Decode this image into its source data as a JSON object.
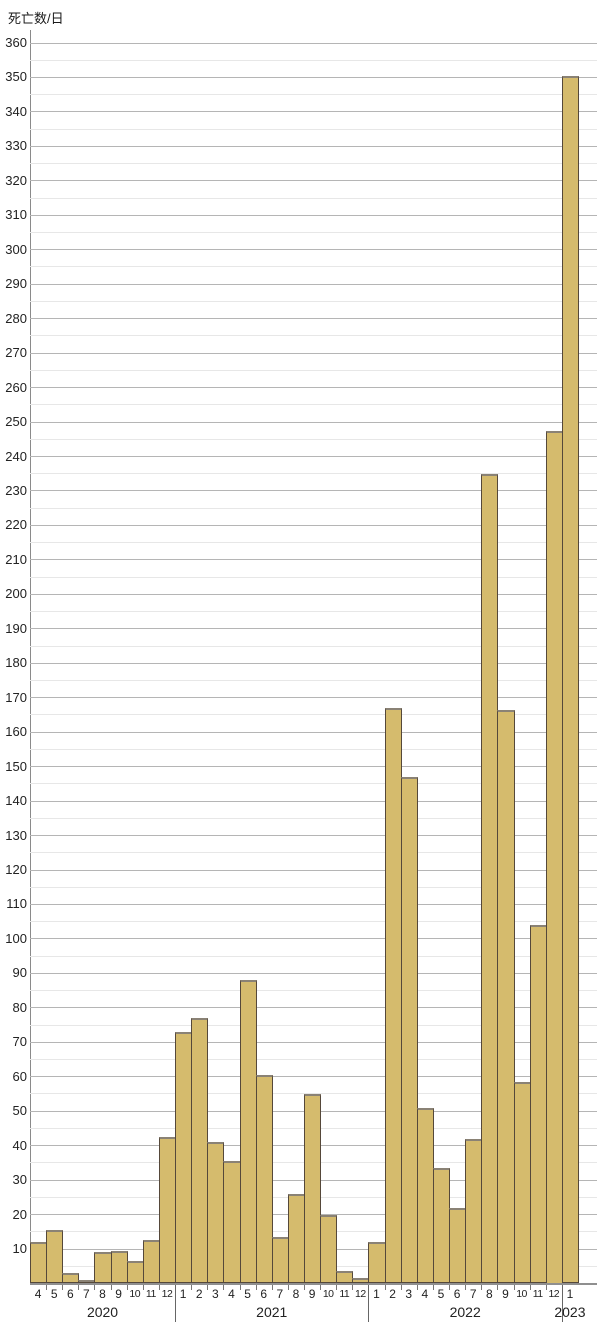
{
  "chart_data": {
    "type": "bar",
    "title": "死亡数/日",
    "ylabel": "死亡数/日",
    "xlabel": "",
    "ylim": [
      0,
      360
    ],
    "ytick_step": 10,
    "minor_grid_step": 5,
    "grid": "on",
    "legend": "none",
    "bar_fill_color": "#d5bb6d",
    "bar_border_color": "#55483a",
    "bar_top_edge_color": "#8a8275",
    "y_tick_labels": [
      "10",
      "20",
      "30",
      "40",
      "50",
      "60",
      "70",
      "80",
      "90",
      "100",
      "110",
      "120",
      "130",
      "140",
      "150",
      "160",
      "170",
      "180",
      "190",
      "200",
      "210",
      "220",
      "230",
      "240",
      "250",
      "260",
      "270",
      "280",
      "290",
      "300",
      "310",
      "320",
      "330",
      "340",
      "350",
      "360"
    ],
    "groups": [
      {
        "year": "2020",
        "months": [
          "4",
          "5",
          "6",
          "7",
          "8",
          "9",
          "10",
          "11",
          "12"
        ],
        "values": [
          12,
          15.5,
          3,
          1,
          9,
          9.5,
          6.5,
          12.5,
          42.5
        ]
      },
      {
        "year": "2021",
        "months": [
          "1",
          "2",
          "3",
          "4",
          "5",
          "6",
          "7",
          "8",
          "9",
          "10",
          "11",
          "12"
        ],
        "values": [
          73,
          77,
          41,
          35.5,
          88,
          60.5,
          13.5,
          26,
          55,
          20,
          3.5,
          1.5
        ]
      },
      {
        "year": "2022",
        "months": [
          "1",
          "2",
          "3",
          "4",
          "5",
          "6",
          "7",
          "8",
          "9",
          "10",
          "11",
          "12"
        ],
        "values": [
          12,
          167,
          147,
          51,
          33.5,
          22,
          42,
          235,
          166.5,
          58.5,
          104,
          247.5
        ]
      },
      {
        "year": "2023",
        "months": [
          "1"
        ],
        "values": [
          350.5
        ]
      }
    ]
  }
}
